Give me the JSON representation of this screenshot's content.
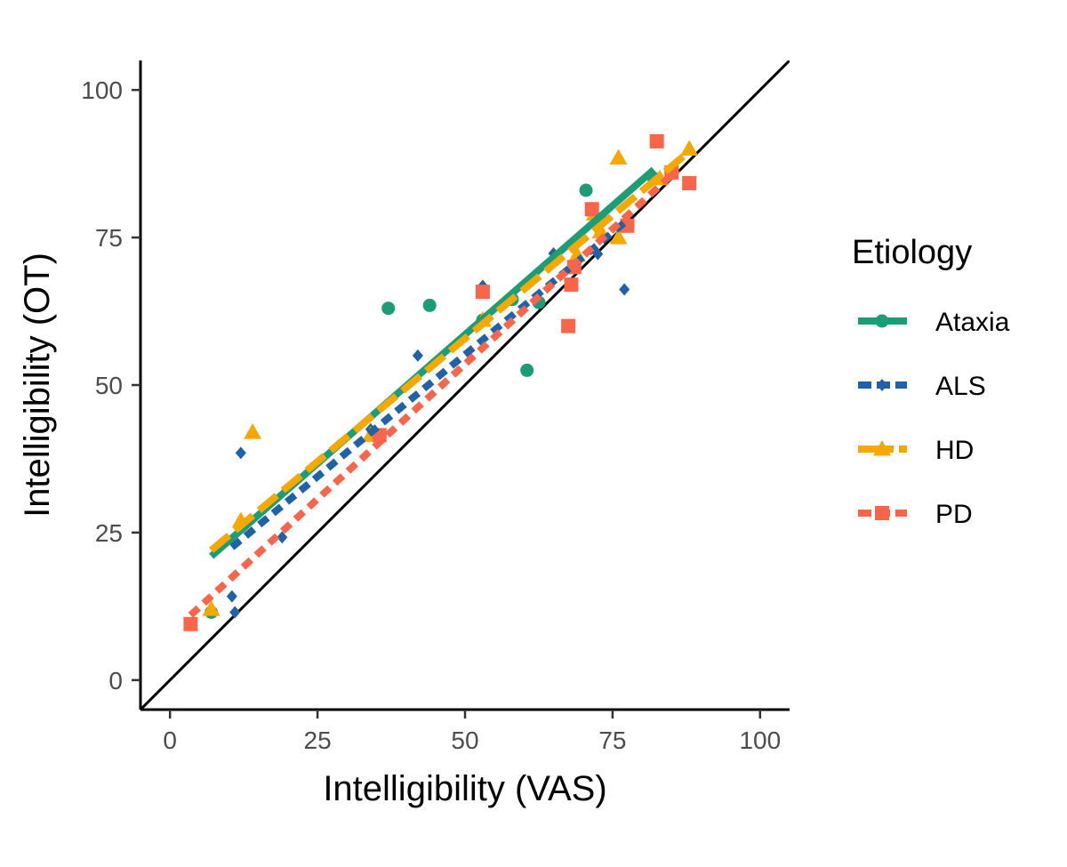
{
  "chart_data": {
    "type": "scatter",
    "xlabel": "Intelligibility (VAS)",
    "ylabel": "Intelligibility (OT)",
    "xlim": [
      -5,
      105
    ],
    "ylim": [
      -5,
      105
    ],
    "xticks": [
      "0",
      "25",
      "50",
      "75",
      "100"
    ],
    "yticks": [
      "0",
      "25",
      "50",
      "75",
      "100"
    ],
    "grid": false,
    "reference_line": {
      "type": "identity",
      "x": [
        -5,
        105
      ],
      "y": [
        -5,
        105
      ]
    },
    "legend": {
      "title": "Etiology",
      "placement": "right"
    },
    "series": [
      {
        "name": "Ataxia",
        "color": "#1b9e77",
        "marker": "circle",
        "linetype": "solid",
        "points": [
          [
            7,
            11.5
          ],
          [
            37,
            63
          ],
          [
            44,
            63.5
          ],
          [
            53,
            61
          ],
          [
            58,
            64.5
          ],
          [
            60.5,
            52.5
          ],
          [
            62.5,
            64
          ],
          [
            70.5,
            83
          ],
          [
            73,
            78
          ],
          [
            82,
            85
          ]
        ],
        "fit": {
          "x": [
            7,
            82
          ],
          "y": [
            21,
            86.5
          ]
        }
      },
      {
        "name": "ALS",
        "color": "#1f62a7",
        "marker": "diamond",
        "linetype": "dashed",
        "points": [
          [
            11,
            11.5
          ],
          [
            10.5,
            14.2
          ],
          [
            12,
            38.5
          ],
          [
            19,
            24.2
          ],
          [
            34,
            42.5
          ],
          [
            42,
            55
          ],
          [
            53,
            66.8
          ],
          [
            65,
            72.3
          ],
          [
            72.5,
            72.2
          ],
          [
            77,
            66.2
          ]
        ],
        "fit": {
          "x": [
            10.5,
            77
          ],
          "y": [
            22.5,
            77.5
          ]
        }
      },
      {
        "name": "HD",
        "color": "#f5a800",
        "marker": "triangle",
        "linetype": "longdash",
        "points": [
          [
            7,
            12
          ],
          [
            12,
            27
          ],
          [
            14,
            42
          ],
          [
            34,
            41.5
          ],
          [
            53,
            61
          ],
          [
            69,
            72
          ],
          [
            72,
            79
          ],
          [
            73,
            76
          ],
          [
            76,
            88.5
          ],
          [
            76,
            75
          ],
          [
            83,
            85
          ],
          [
            88,
            90
          ]
        ],
        "fit": {
          "x": [
            7,
            88.5
          ],
          "y": [
            22,
            90
          ]
        }
      },
      {
        "name": "PD",
        "color": "#f8654a",
        "marker": "square",
        "linetype": "dashed",
        "points": [
          [
            3.5,
            9.5
          ],
          [
            35.5,
            41.5
          ],
          [
            53,
            65.8
          ],
          [
            67.5,
            60
          ],
          [
            68,
            67
          ],
          [
            68.5,
            70
          ],
          [
            71.5,
            79.8
          ],
          [
            77.5,
            77
          ],
          [
            82.5,
            91.3
          ],
          [
            85,
            86
          ],
          [
            88,
            84.2
          ]
        ],
        "fit": {
          "x": [
            3.5,
            86
          ],
          "y": [
            11,
            86.5
          ]
        }
      }
    ]
  }
}
